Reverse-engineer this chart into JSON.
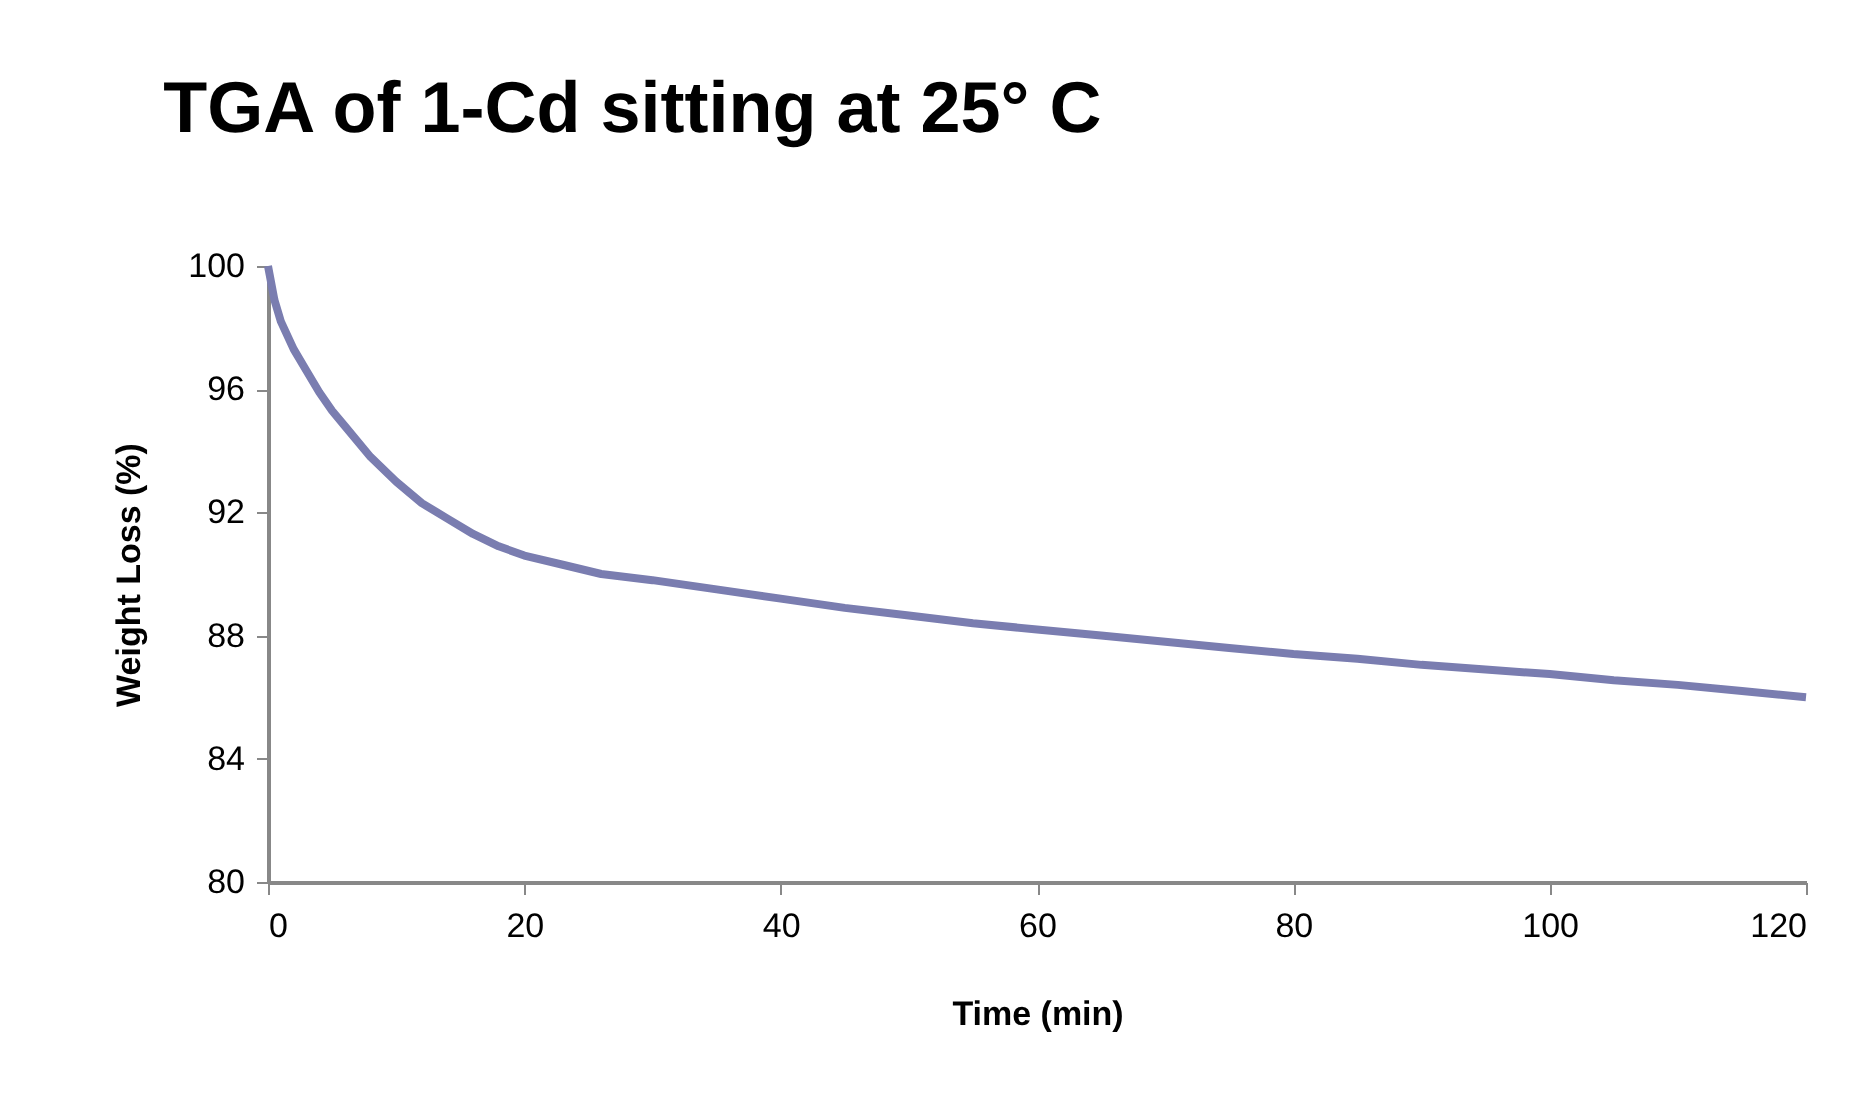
{
  "chart_data": {
    "type": "line",
    "title": "TGA of 1-Cd sitting at 25° C",
    "xlabel": "Time (min)",
    "ylabel": "Weight Loss (%)",
    "x": [
      0,
      0.5,
      1,
      2,
      3,
      4,
      5,
      6,
      8,
      10,
      12,
      14,
      16,
      18,
      20,
      23,
      26,
      30,
      35,
      40,
      45,
      50,
      55,
      60,
      65,
      70,
      75,
      80,
      85,
      90,
      95,
      100,
      105,
      110,
      115,
      120
    ],
    "series": [
      {
        "color": "#7a7db0",
        "values": [
          100,
          98.9,
          98.2,
          97.3,
          96.6,
          95.9,
          95.3,
          94.8,
          93.8,
          93.0,
          92.3,
          91.8,
          91.3,
          90.9,
          90.6,
          90.3,
          90.0,
          89.8,
          89.5,
          89.2,
          88.9,
          88.65,
          88.4,
          88.2,
          88.0,
          87.8,
          87.6,
          87.4,
          87.25,
          87.05,
          86.9,
          86.75,
          86.55,
          86.4,
          86.2,
          86.0
        ]
      }
    ],
    "xlim": [
      0,
      120
    ],
    "xticks": [
      0,
      20,
      40,
      60,
      80,
      100,
      120
    ],
    "ylim": [
      80,
      100
    ],
    "yticks": [
      80,
      84,
      88,
      92,
      96,
      100
    ],
    "grid": false,
    "legend": false,
    "marker": "none",
    "line_style": "solid"
  }
}
